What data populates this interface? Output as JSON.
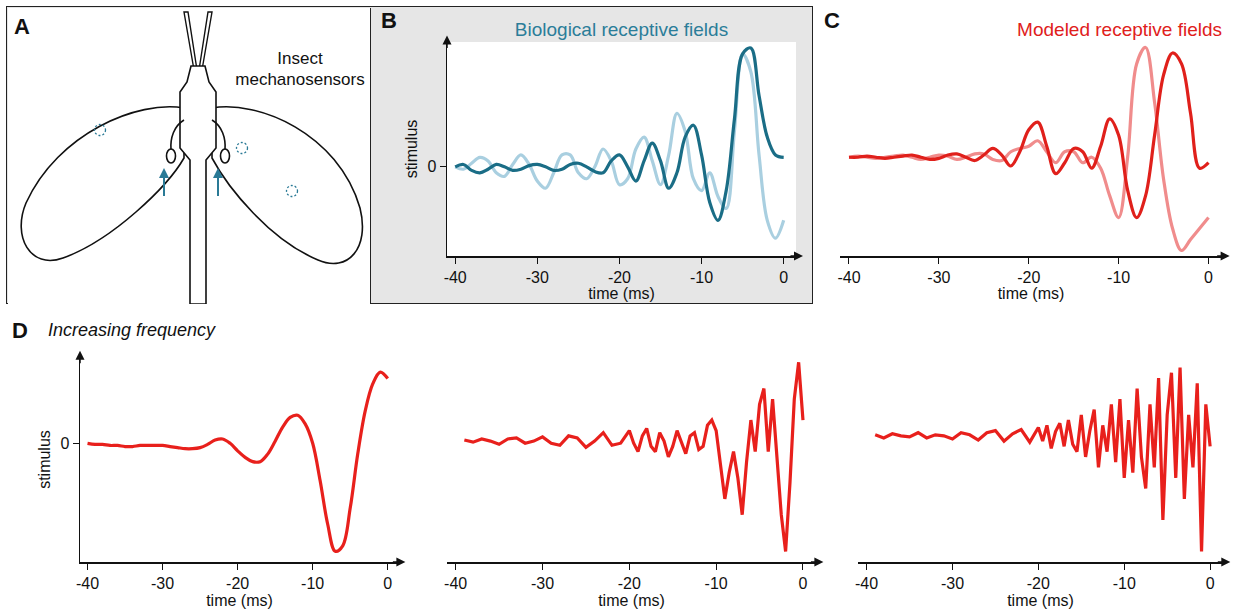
{
  "panel_A": {
    "letter": "A",
    "label": "Insect mechanosensors"
  },
  "chart_data": [
    {
      "type": "line",
      "annotations": [
        "B"
      ],
      "title": "Biological receptive fields",
      "xlabel": "time (ms)",
      "ylabel": "stimulus",
      "xlim": [
        -41,
        1.5
      ],
      "xticks": [
        -40,
        -30,
        -20,
        -10,
        0
      ],
      "ylim": [
        -0.75,
        1.05
      ],
      "yticks": [
        0
      ],
      "grid": false,
      "x": [
        -40,
        -39,
        -38,
        -37,
        -36,
        -35,
        -34,
        -33,
        -32,
        -31,
        -30,
        -29,
        -28,
        -27,
        -26,
        -25,
        -24,
        -23,
        -22,
        -21,
        -20,
        -19,
        -18,
        -17,
        -16,
        -15,
        -14,
        -13,
        -12,
        -11,
        -10,
        -9,
        -8,
        -7,
        -6,
        -5,
        -4,
        -3,
        -2,
        -1,
        0
      ],
      "series": [
        {
          "color": "#a9cfe0",
          "values": [
            0,
            -0.02,
            0.03,
            0.08,
            0.05,
            -0.05,
            -0.08,
            0.02,
            0.1,
            0.02,
            -0.12,
            -0.18,
            -0.05,
            0.1,
            0.1,
            -0.05,
            -0.1,
            0.0,
            0.15,
            0.05,
            -0.15,
            -0.1,
            0.15,
            0.25,
            0.05,
            -0.15,
            0.1,
            0.45,
            0.3,
            -0.1,
            -0.2,
            -0.05,
            -0.25,
            -0.35,
            0.3,
            0.95,
            0.8,
            0.1,
            -0.45,
            -0.6,
            -0.45
          ]
        },
        {
          "color": "#1a6d86",
          "values": [
            0,
            0.02,
            -0.03,
            -0.05,
            -0.02,
            0.02,
            0,
            -0.03,
            -0.02,
            0.01,
            0.02,
            0,
            -0.03,
            -0.02,
            0.02,
            0.03,
            0,
            -0.04,
            -0.05,
            0.05,
            0.1,
            0,
            -0.12,
            0.05,
            0.2,
            0.05,
            -0.18,
            -0.05,
            0.25,
            0.35,
            0.1,
            -0.3,
            -0.45,
            -0.2,
            0.4,
            0.95,
            1.0,
            0.6,
            0.25,
            0.1,
            0.08
          ]
        }
      ]
    },
    {
      "type": "line",
      "annotations": [
        "C"
      ],
      "title": "Modeled receptive fields",
      "xlabel": "time (ms)",
      "tick_labels": "x",
      "xlim": [
        -41,
        1.5
      ],
      "xticks": [
        -40,
        -30,
        -20,
        -10,
        0
      ],
      "ylim": [
        -0.9,
        1.05
      ],
      "grid": false,
      "x": [
        -40,
        -39,
        -38,
        -37,
        -36,
        -35,
        -34,
        -33,
        -32,
        -31,
        -30,
        -29,
        -28,
        -27,
        -26,
        -25,
        -24,
        -23,
        -22,
        -21,
        -20,
        -19,
        -18,
        -17,
        -16,
        -15,
        -14,
        -13,
        -12,
        -11,
        -10,
        -9,
        -8,
        -7,
        -6,
        -5,
        -4,
        -3,
        -2,
        -1,
        0
      ],
      "series": [
        {
          "color": "#f08c8c",
          "values": [
            0,
            0.01,
            0,
            -0.01,
            0,
            0.01,
            0.02,
            0,
            -0.02,
            0,
            0.02,
            0.01,
            -0.02,
            0,
            0.03,
            0.03,
            -0.02,
            -0.03,
            0.05,
            0.08,
            0.1,
            0.15,
            0.05,
            -0.05,
            0.05,
            0.05,
            -0.05,
            0.0,
            -0.1,
            -0.35,
            -0.55,
            0.0,
            0.85,
            1.0,
            0.5,
            -0.2,
            -0.65,
            -0.85,
            -0.75,
            -0.65,
            -0.55
          ]
        },
        {
          "color": "#e0201b",
          "values": [
            0,
            0,
            0.01,
            0,
            -0.01,
            0,
            0.01,
            0.02,
            0,
            -0.02,
            -0.01,
            0.02,
            0.03,
            0,
            -0.03,
            0.02,
            0.08,
            0.02,
            -0.08,
            0.05,
            0.25,
            0.32,
            0.1,
            -0.15,
            -0.05,
            0.08,
            0.05,
            -0.1,
            0.1,
            0.35,
            0.2,
            -0.3,
            -0.55,
            -0.35,
            0.2,
            0.75,
            0.95,
            0.85,
            0.4,
            -0.1,
            -0.05
          ]
        }
      ]
    },
    {
      "type": "line",
      "annotations": [
        "D",
        "Increasing frequency"
      ],
      "xlabel": "time (ms)",
      "ylabel": "stimulus",
      "xlim": [
        -41,
        1.5
      ],
      "xticks": [
        -40,
        -30,
        -20,
        -10,
        0
      ],
      "ylim": [
        -1.1,
        0.8
      ],
      "yticks": [
        0
      ],
      "grid": false,
      "x": [
        -40,
        -39,
        -38,
        -37,
        -36,
        -35,
        -34,
        -33,
        -32,
        -31,
        -30,
        -29,
        -28,
        -27,
        -26,
        -25,
        -24,
        -23,
        -22,
        -21,
        -20,
        -19,
        -18,
        -17,
        -16,
        -15,
        -14,
        -13,
        -12,
        -11,
        -10,
        -9,
        -8,
        -7,
        -6,
        -5,
        -4,
        -3,
        -2,
        -1,
        0
      ],
      "series": [
        {
          "color": "#e8201c",
          "values": [
            0,
            -0.01,
            -0.01,
            -0.02,
            -0.02,
            -0.03,
            -0.03,
            -0.02,
            -0.02,
            -0.02,
            -0.02,
            -0.03,
            -0.04,
            -0.05,
            -0.05,
            -0.04,
            -0.01,
            0.03,
            0.04,
            0.0,
            -0.07,
            -0.13,
            -0.17,
            -0.17,
            -0.1,
            0.02,
            0.15,
            0.24,
            0.26,
            0.18,
            0.0,
            -0.35,
            -0.75,
            -1.0,
            -0.95,
            -0.6,
            -0.1,
            0.3,
            0.55,
            0.66,
            0.6
          ]
        }
      ]
    },
    {
      "type": "line",
      "annotations": [],
      "xlabel": "time (ms)",
      "tick_labels": "x",
      "xlim": [
        -41,
        1.5
      ],
      "xticks": [
        -40,
        -30,
        -20,
        -10,
        0
      ],
      "ylim": [
        -1.15,
        0.8
      ],
      "grid": false,
      "x": [
        -39,
        -38,
        -37,
        -36,
        -35,
        -34,
        -33,
        -32,
        -31,
        -30,
        -29,
        -28,
        -27,
        -26,
        -25,
        -24,
        -23,
        -22,
        -21,
        -20,
        -19.5,
        -19,
        -18.5,
        -18,
        -17.5,
        -17,
        -16.5,
        -16,
        -15.5,
        -15,
        -14.5,
        -14,
        -13.5,
        -13,
        -12.5,
        -12,
        -11.5,
        -11,
        -10.5,
        -10,
        -9.5,
        -9,
        -8.5,
        -8,
        -7.5,
        -7,
        -6.5,
        -6,
        -5.5,
        -5,
        -4.5,
        -4,
        -3.5,
        -3,
        -2.5,
        -2,
        -1.5,
        -1,
        -0.5,
        0
      ],
      "series": [
        {
          "color": "#e8201c",
          "values": [
            0.01,
            -0.01,
            0.02,
            0.0,
            -0.03,
            0.02,
            0.03,
            -0.02,
            0.0,
            0.04,
            -0.02,
            -0.04,
            0.05,
            0.03,
            -0.06,
            0.0,
            0.08,
            -0.04,
            -0.02,
            0.1,
            -0.02,
            -0.1,
            0.05,
            0.12,
            -0.05,
            -0.1,
            0.08,
            0.0,
            -0.15,
            -0.05,
            0.1,
            -0.02,
            -0.12,
            0.05,
            0.08,
            -0.08,
            -0.05,
            0.15,
            0.2,
            0.1,
            -0.25,
            -0.55,
            -0.3,
            -0.1,
            -0.35,
            -0.7,
            -0.2,
            0.2,
            -0.1,
            0.35,
            0.5,
            -0.1,
            0.4,
            -0.2,
            -0.7,
            -1.05,
            -0.4,
            0.4,
            0.75,
            0.2
          ]
        }
      ]
    },
    {
      "type": "line",
      "annotations": [],
      "xlabel": "time (ms)",
      "tick_labels": "x",
      "xlim": [
        -41,
        1.5
      ],
      "xticks": [
        -40,
        -30,
        -20,
        -10,
        0
      ],
      "ylim": [
        -1.2,
        0.75
      ],
      "grid": false,
      "x": [
        -39,
        -38,
        -37,
        -36,
        -35,
        -34,
        -33,
        -32,
        -31,
        -30,
        -29,
        -28,
        -27,
        -26,
        -25,
        -24,
        -23,
        -22,
        -21,
        -20,
        -19.5,
        -19,
        -18.5,
        -18,
        -17.5,
        -17,
        -16.5,
        -16,
        -15.5,
        -15,
        -14.5,
        -14,
        -13.5,
        -13,
        -12.5,
        -12,
        -11.5,
        -11,
        -10.5,
        -10,
        -9.5,
        -9,
        -8.5,
        -8,
        -7.5,
        -7,
        -6.5,
        -6,
        -5.5,
        -5,
        -4.5,
        -4,
        -3.5,
        -3,
        -2.5,
        -2,
        -1.5,
        -1,
        -0.5,
        0
      ],
      "series": [
        {
          "color": "#e8201c",
          "values": [
            0.01,
            -0.02,
            0.02,
            0.0,
            -0.01,
            0.03,
            -0.02,
            0.01,
            0.0,
            -0.03,
            0.03,
            0.01,
            -0.04,
            0.03,
            0.05,
            -0.05,
            0.02,
            0.06,
            -0.06,
            0.08,
            -0.05,
            0.1,
            -0.12,
            0.04,
            0.12,
            -0.1,
            0.15,
            -0.08,
            -0.15,
            0.2,
            -0.2,
            0.05,
            0.25,
            -0.3,
            0.1,
            -0.15,
            0.3,
            -0.25,
            0.35,
            -0.4,
            0.15,
            -0.35,
            0.45,
            -0.2,
            -0.5,
            0.3,
            -0.3,
            0.55,
            -0.8,
            0.2,
            0.6,
            -0.4,
            0.65,
            -0.6,
            0.2,
            -0.3,
            0.5,
            -1.1,
            0.3,
            -0.1
          ]
        }
      ]
    }
  ]
}
